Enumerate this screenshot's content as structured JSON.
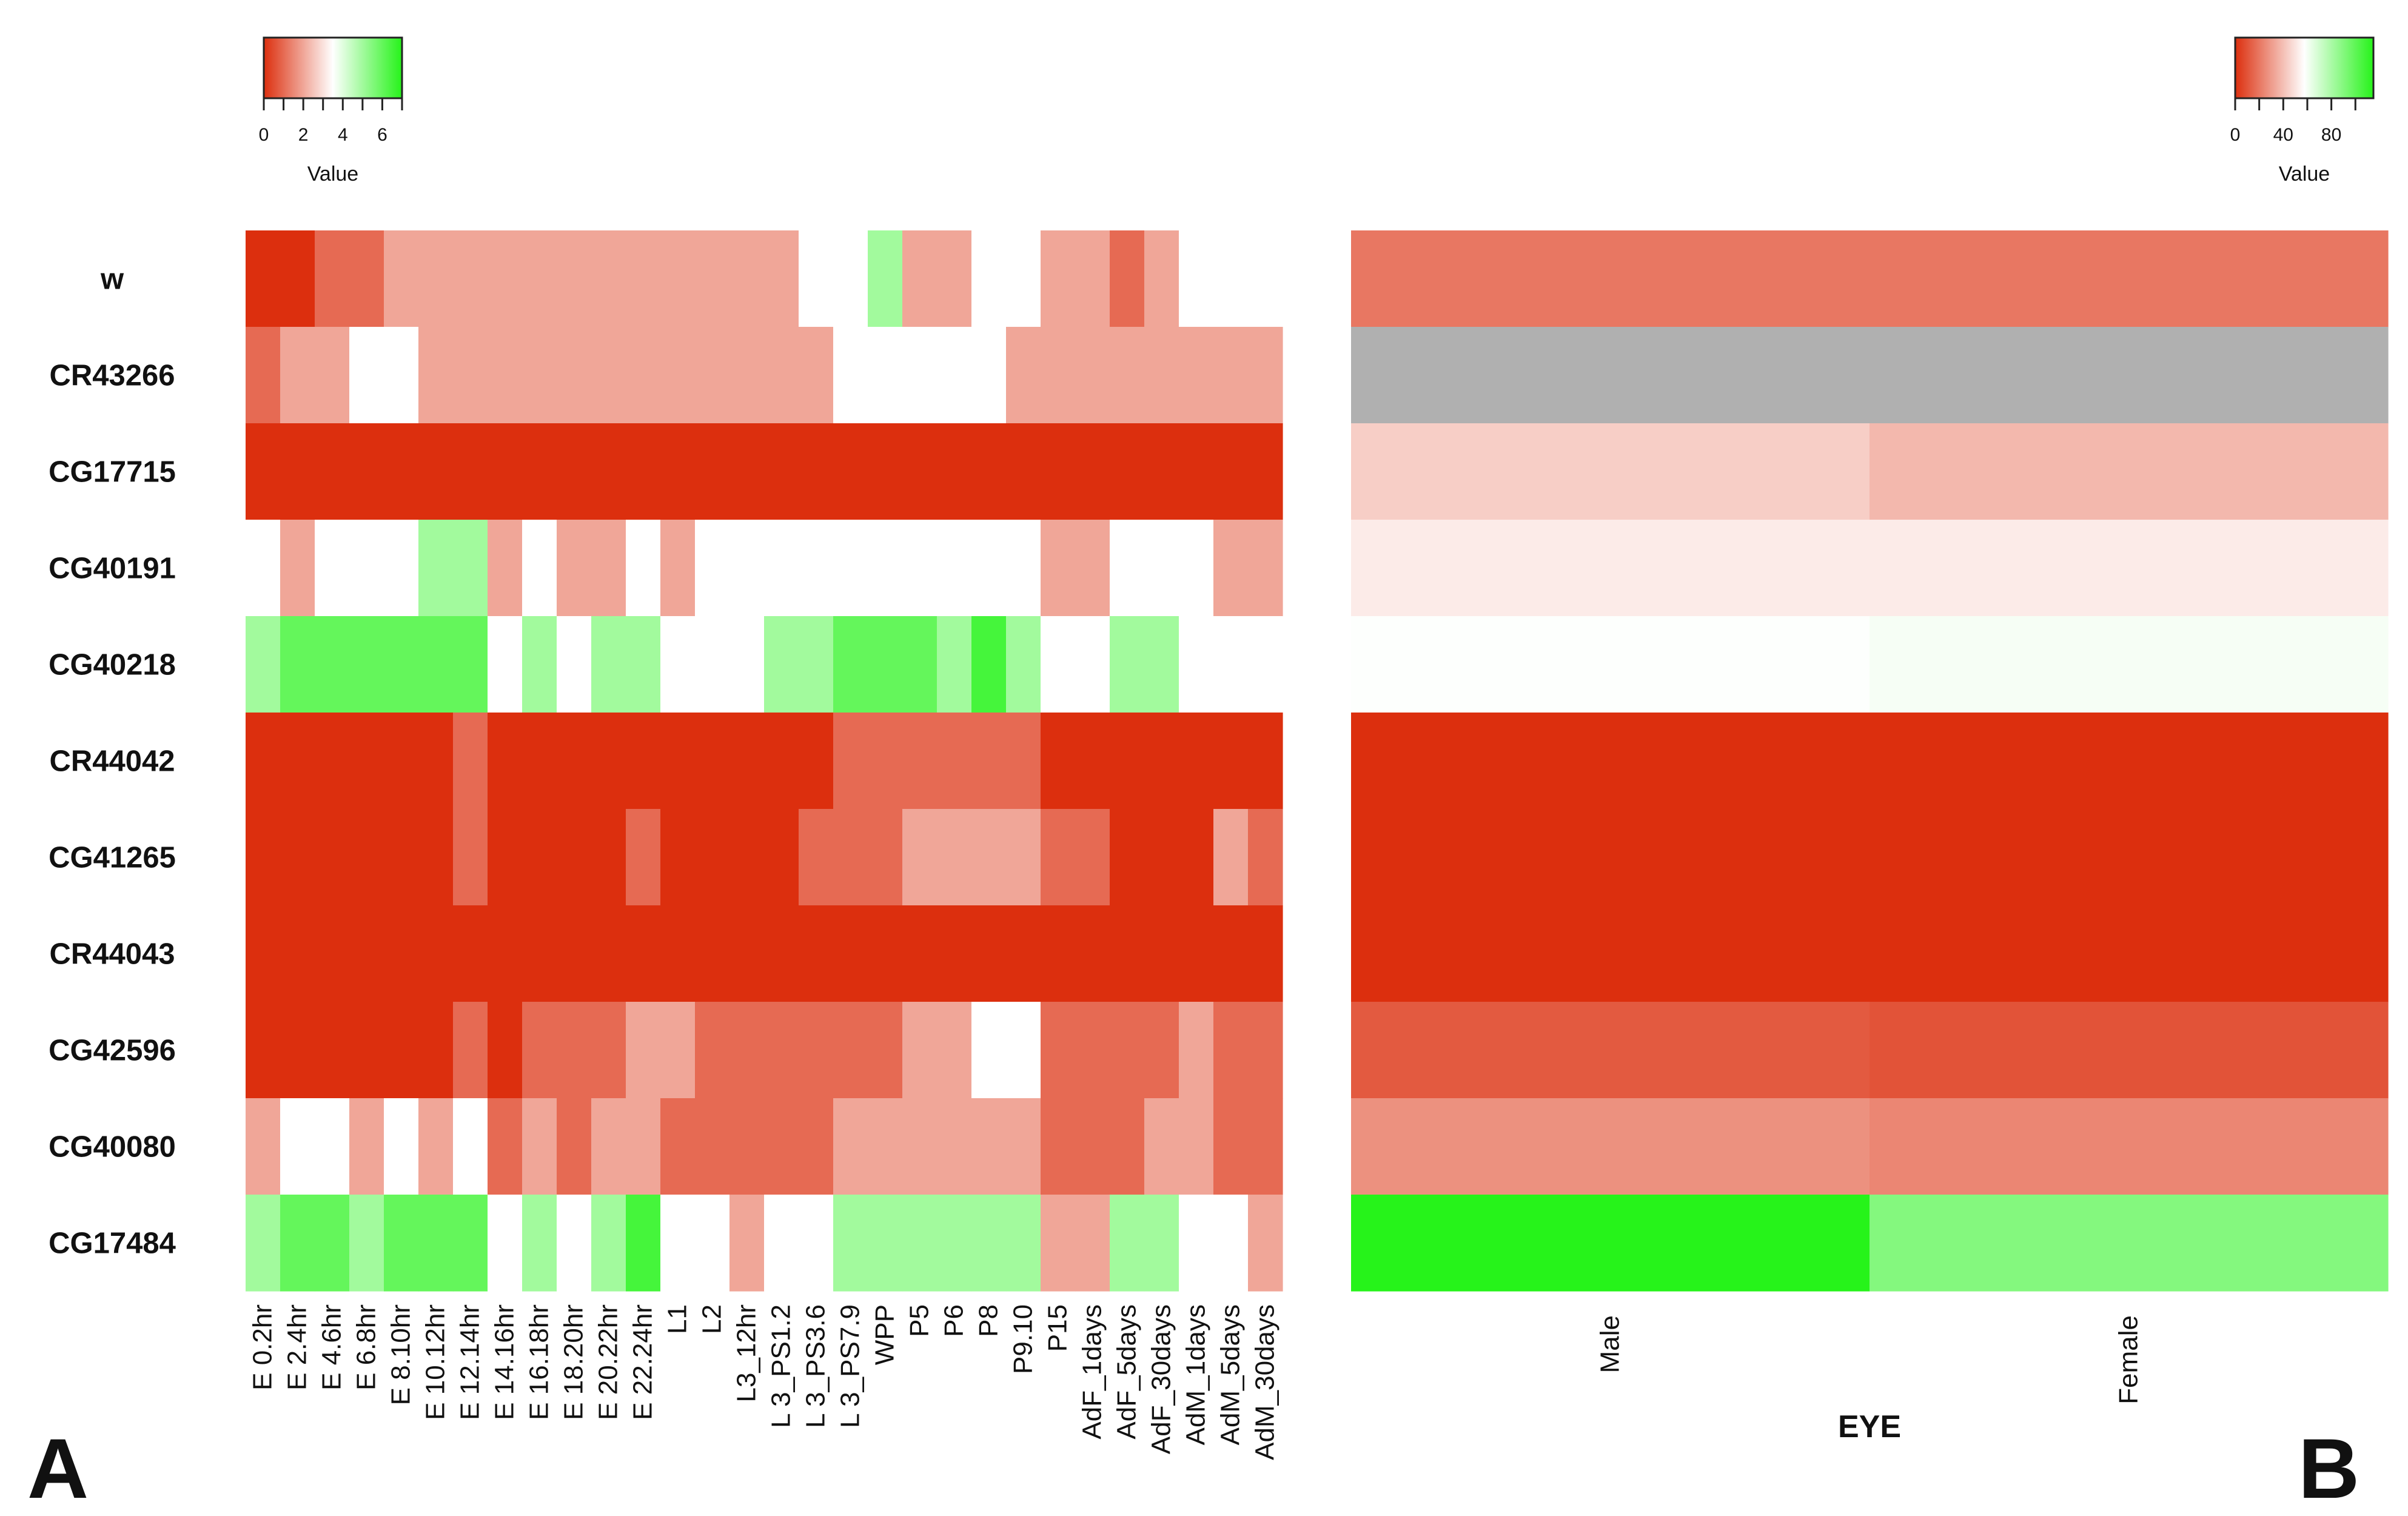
{
  "chart_data": [
    {
      "panel": "A",
      "type": "heatmap",
      "rows": [
        "w",
        "CR43266",
        "CG17715",
        "CG40191",
        "CG40218",
        "CR44042",
        "CG41265",
        "CR44043",
        "CG42596",
        "CG40080",
        "CG17484"
      ],
      "columns": [
        "E 0.2hr",
        "E 2.4hr",
        "E 4.6hr",
        "E 6.8hr",
        "E 8.10hr",
        "E 10.12hr",
        "E 12.14hr",
        "E 14.16hr",
        "E 16.18hr",
        "E 18.20hr",
        "E 20.22hr",
        "E 22.24hr",
        "L1",
        "L2",
        "L3_12hr",
        "L 3_PS1.2",
        "L 3_PS3.6",
        "L 3_PS7.9",
        "WPP",
        "P5",
        "P6",
        "P8",
        "P9.10",
        "P15",
        "AdF_1days",
        "AdF_5days",
        "AdF_30days",
        "AdM_1days",
        "AdM_5days",
        "AdM_30days"
      ],
      "values": [
        [
          0,
          0,
          1,
          1,
          2,
          2,
          2,
          2,
          2,
          2,
          2,
          2,
          2,
          2,
          2,
          2,
          3.5,
          3.5,
          5,
          2,
          2,
          3.5,
          3.5,
          2,
          2,
          1,
          2,
          3.5,
          3.5,
          3.5
        ],
        [
          1,
          2,
          2,
          3.5,
          3.5,
          2,
          2,
          2,
          2,
          2,
          2,
          2,
          2,
          2,
          2,
          2,
          2,
          3.5,
          3.5,
          3.5,
          3.5,
          3.5,
          2,
          2,
          2,
          2,
          2,
          2,
          2,
          2
        ],
        [
          0,
          0,
          0,
          0,
          0,
          0,
          0,
          0,
          0,
          0,
          0,
          0,
          0,
          0,
          0,
          0,
          0,
          0,
          0,
          0,
          0,
          0,
          0,
          0,
          0,
          0,
          0,
          0,
          0,
          0
        ],
        [
          3.5,
          2,
          3.5,
          3.5,
          3.5,
          5,
          5,
          2,
          3.5,
          2,
          2,
          3.5,
          2,
          3.5,
          3.5,
          3.5,
          3.5,
          3.5,
          3.5,
          3.5,
          3.5,
          3.5,
          3.5,
          2,
          2,
          3.5,
          3.5,
          3.5,
          2,
          2
        ],
        [
          5,
          6,
          6,
          6,
          6,
          6,
          6,
          3.5,
          5,
          3.5,
          5,
          5,
          3.5,
          3.5,
          3.5,
          5,
          5,
          6,
          6,
          6,
          5,
          6.5,
          5,
          3.5,
          3.5,
          5,
          5,
          3.5,
          3.5,
          3.5
        ],
        [
          0,
          0,
          0,
          0,
          0,
          0,
          1,
          0,
          0,
          0,
          0,
          0,
          0,
          0,
          0,
          0,
          0,
          1,
          1,
          1,
          1,
          1,
          1,
          0,
          0,
          0,
          0,
          0,
          0,
          0
        ],
        [
          0,
          0,
          0,
          0,
          0,
          0,
          1,
          0,
          0,
          0,
          0,
          1,
          0,
          0,
          0,
          0,
          1,
          1,
          1,
          2,
          2,
          2,
          2,
          1,
          1,
          0,
          0,
          0,
          2,
          1
        ],
        [
          0,
          0,
          0,
          0,
          0,
          0,
          0,
          0,
          0,
          0,
          0,
          0,
          0,
          0,
          0,
          0,
          0,
          0,
          0,
          0,
          0,
          0,
          0,
          0,
          0,
          0,
          0,
          0,
          0,
          0
        ],
        [
          0,
          0,
          0,
          0,
          0,
          0,
          1,
          0,
          1,
          1,
          1,
          2,
          2,
          1,
          1,
          1,
          1,
          1,
          1,
          2,
          2,
          3.5,
          3.5,
          1,
          1,
          1,
          1,
          2,
          1,
          1
        ],
        [
          2,
          3.5,
          3.5,
          2,
          3.5,
          2,
          3.5,
          1,
          2,
          1,
          2,
          2,
          1,
          1,
          1,
          1,
          1,
          2,
          2,
          2,
          2,
          2,
          2,
          1,
          1,
          1,
          2,
          2,
          1,
          1
        ],
        [
          5,
          6,
          6,
          5,
          6,
          6,
          6,
          3.5,
          5,
          3.5,
          5,
          6.5,
          3.5,
          3.5,
          2,
          3.5,
          3.5,
          5,
          5,
          5,
          5,
          5,
          5,
          2,
          2,
          5,
          5,
          3.5,
          3.5,
          2
        ]
      ],
      "color_key": {
        "title": "Value",
        "tick_labels": [
          "0",
          "2",
          "4",
          "6"
        ],
        "range": [
          0,
          7
        ],
        "low_color": "#dc2f0e",
        "mid_color": "#ffffff",
        "high_color": "#26f31a"
      },
      "panel_label": "A"
    },
    {
      "panel": "B",
      "type": "heatmap",
      "rows": [
        "w",
        "CR43266",
        "CG17715",
        "CG40191",
        "CG40218",
        "CR44042",
        "CG41265",
        "CR44043",
        "CG42596",
        "CG40080",
        "CG17484"
      ],
      "columns": [
        "Male",
        "Female"
      ],
      "values": [
        [
          20,
          20
        ],
        [
          null,
          null
        ],
        [
          44,
          38
        ],
        [
          52,
          52
        ],
        [
          58,
          60
        ],
        [
          0,
          0
        ],
        [
          0,
          0
        ],
        [
          0,
          0
        ],
        [
          12,
          10
        ],
        [
          27,
          24
        ],
        [
          115,
          90
        ]
      ],
      "xlabel": "EYE",
      "color_key": {
        "title": "Value",
        "tick_labels": [
          "0",
          "40",
          "80"
        ],
        "range": [
          0,
          115
        ],
        "low_color": "#dc2f0e",
        "mid_color": "#ffffff",
        "high_color": "#26f31a",
        "na_color": "#b0b0b0"
      },
      "panel_label": "B"
    }
  ]
}
